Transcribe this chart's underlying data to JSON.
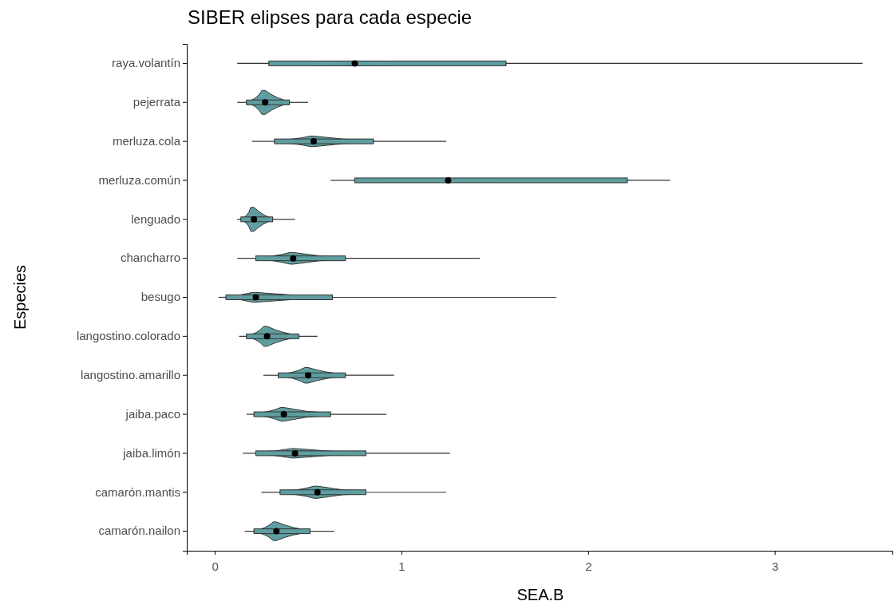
{
  "chart_data": {
    "type": "box",
    "orientation": "horizontal",
    "title": "SIBER elipses para cada especie",
    "xlabel": "SEA.B",
    "ylabel": "Especies",
    "color": "#5f9ea0",
    "grid": false,
    "categories": [
      "raya.volantín",
      "pejerrata",
      "merluza.cola",
      "merluza.común",
      "lenguado",
      "chancharro",
      "besugo",
      "langostino.colorado",
      "langostino.amarillo",
      "jaiba.paco",
      "jaiba.limón",
      "camarón.mantis",
      "camarón.nailon"
    ],
    "xlim": [
      -0.15,
      3.63
    ],
    "xticks": [
      0,
      1,
      2,
      3
    ],
    "boxes": [
      {
        "low": 0.12,
        "q1": 0.29,
        "median": 0.75,
        "q3": 1.56,
        "high": 3.47
      },
      {
        "low": 0.12,
        "q1": 0.17,
        "median": 0.27,
        "q3": 0.4,
        "high": 0.5
      },
      {
        "low": 0.2,
        "q1": 0.32,
        "median": 0.53,
        "q3": 0.85,
        "high": 1.24
      },
      {
        "low": 0.62,
        "q1": 0.75,
        "median": 1.25,
        "q3": 2.21,
        "high": 2.44
      },
      {
        "low": 0.12,
        "q1": 0.14,
        "median": 0.21,
        "q3": 0.31,
        "high": 0.43
      },
      {
        "low": 0.12,
        "q1": 0.22,
        "median": 0.42,
        "q3": 0.7,
        "high": 1.42
      },
      {
        "low": 0.02,
        "q1": 0.06,
        "median": 0.22,
        "q3": 0.63,
        "high": 1.83
      },
      {
        "low": 0.13,
        "q1": 0.17,
        "median": 0.28,
        "q3": 0.45,
        "high": 0.55
      },
      {
        "low": 0.26,
        "q1": 0.34,
        "median": 0.5,
        "q3": 0.7,
        "high": 0.96
      },
      {
        "low": 0.17,
        "q1": 0.21,
        "median": 0.37,
        "q3": 0.62,
        "high": 0.92
      },
      {
        "low": 0.15,
        "q1": 0.22,
        "median": 0.43,
        "q3": 0.81,
        "high": 1.26
      },
      {
        "low": 0.25,
        "q1": 0.35,
        "median": 0.55,
        "q3": 0.81,
        "high": 1.24
      },
      {
        "low": 0.16,
        "q1": 0.21,
        "median": 0.33,
        "q3": 0.51,
        "high": 0.64
      }
    ]
  }
}
